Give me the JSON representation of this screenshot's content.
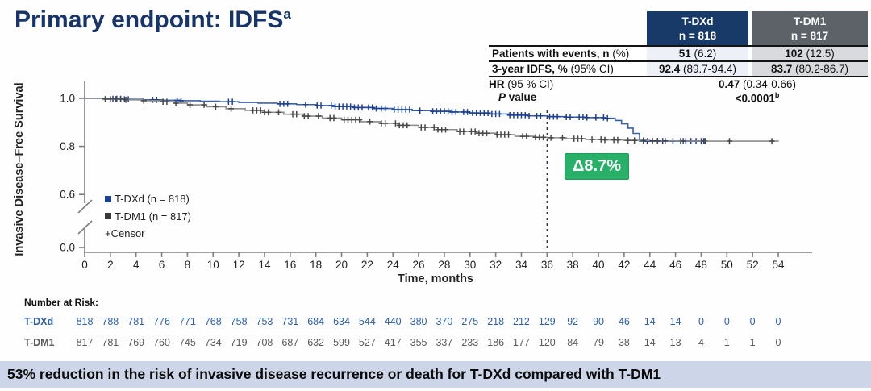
{
  "title": {
    "text": "Primary endpoint: IDFS",
    "sup": "a"
  },
  "stats_table": {
    "col_headers": [
      {
        "line1": "T-DXd",
        "line2": "n = 818"
      },
      {
        "line1": "T-DM1",
        "line2": "n = 817"
      }
    ],
    "rows": [
      {
        "label_bold": "Patients with events, n",
        "label_rest": " (%)",
        "tdxd_bold": "51",
        "tdxd_rest": " (6.2)",
        "tdm1_bold": "102",
        "tdm1_rest": " (12.5)"
      },
      {
        "label_bold": "3-year IDFS, %",
        "label_rest": " (95% CI)",
        "tdxd_bold": "92.4",
        "tdxd_rest": " (89.7-94.4)",
        "tdm1_bold": "83.7",
        "tdm1_rest": " (80.2-86.7)"
      }
    ],
    "hr": {
      "label_bold": "HR",
      "label_rest": " (95 % CI)",
      "value_bold": "0.47",
      "value_rest": " (0.34-0.66)"
    },
    "p": {
      "label_italic": "P",
      "label_rest": " value",
      "value": "<0.0001",
      "sup": "b"
    }
  },
  "chart_data": {
    "type": "line",
    "subtype": "kaplan-meier-step",
    "xlabel": "Time, months",
    "ylabel": "Invasive Disease–Free Survival",
    "xlim": [
      0,
      54
    ],
    "x_ticks": [
      0,
      2,
      4,
      6,
      8,
      10,
      12,
      14,
      16,
      18,
      20,
      22,
      24,
      26,
      28,
      30,
      32,
      34,
      36,
      38,
      40,
      42,
      44,
      46,
      48,
      50,
      52,
      54
    ],
    "y_ticks": [
      1.0,
      0.8,
      0.6,
      0.0
    ],
    "y_axis_break": true,
    "reference_line_x": 36,
    "annotation": {
      "text": "Δ8.7%",
      "color": "#28b068"
    },
    "legend": {
      "censor_label": "+Censor"
    },
    "series": [
      {
        "name": "T-DXd (n = 818)",
        "color": "#3b62a8",
        "censor_color": "#1b3f94",
        "steps": [
          [
            0,
            1.0
          ],
          [
            1.5,
            0.998
          ],
          [
            3,
            0.996
          ],
          [
            4.5,
            0.994
          ],
          [
            6,
            0.992
          ],
          [
            7.5,
            0.99
          ],
          [
            9,
            0.988
          ],
          [
            10.5,
            0.986
          ],
          [
            12,
            0.983
          ],
          [
            13.5,
            0.98
          ],
          [
            15,
            0.977
          ],
          [
            16.5,
            0.974
          ],
          [
            18,
            0.97
          ],
          [
            19.5,
            0.966
          ],
          [
            21,
            0.962
          ],
          [
            22.5,
            0.958
          ],
          [
            24,
            0.953
          ],
          [
            25.5,
            0.949
          ],
          [
            27,
            0.946
          ],
          [
            28.5,
            0.943
          ],
          [
            30,
            0.939
          ],
          [
            31.5,
            0.935
          ],
          [
            33,
            0.93
          ],
          [
            34.5,
            0.927
          ],
          [
            36,
            0.924
          ],
          [
            37.5,
            0.922
          ],
          [
            39,
            0.92
          ],
          [
            40.5,
            0.917
          ],
          [
            41.3,
            0.908
          ],
          [
            41.8,
            0.894
          ],
          [
            42.3,
            0.876
          ],
          [
            42.7,
            0.854
          ],
          [
            43.2,
            0.822
          ],
          [
            48.5,
            0.822
          ]
        ],
        "censors": [
          2.2,
          2.5,
          2.8,
          3.1,
          3.4,
          5.3,
          5.6,
          7.2,
          7.5,
          11.2,
          11.5,
          15.2,
          15.5,
          15.8,
          17.2,
          18.1,
          18.4,
          19.2,
          19.5,
          19.8,
          20.1,
          20.4,
          20.7,
          21.0,
          21.3,
          21.6,
          22.1,
          22.4,
          22.7,
          23.1,
          23.4,
          24.1,
          24.4,
          24.7,
          25.0,
          25.3,
          26.1,
          27.1,
          27.4,
          27.7,
          28.0,
          28.3,
          28.6,
          28.9,
          29.5,
          29.8,
          30.2,
          30.5,
          30.8,
          31.1,
          31.4,
          31.7,
          32.0,
          32.3,
          33.1,
          33.4,
          33.7,
          34.0,
          34.3,
          34.6,
          35.2,
          35.5,
          36.2,
          36.5,
          36.8,
          37.5,
          37.8,
          38.5,
          38.8,
          39.1,
          39.8,
          40.4,
          40.7,
          43.8,
          44.2,
          44.6,
          45.0,
          45.8,
          46.4,
          46.8,
          47.2,
          47.6,
          48.0,
          48.3
        ]
      },
      {
        "name": "T-DM1 (n = 817)",
        "color": "#8c8c8c",
        "censor_color": "#474747",
        "steps": [
          [
            0,
            1.0
          ],
          [
            1.5,
            0.997
          ],
          [
            3,
            0.994
          ],
          [
            4.5,
            0.99
          ],
          [
            6,
            0.986
          ],
          [
            7,
            0.98
          ],
          [
            8,
            0.973
          ],
          [
            9.5,
            0.965
          ],
          [
            11,
            0.957
          ],
          [
            12.5,
            0.95
          ],
          [
            14,
            0.942
          ],
          [
            15.5,
            0.934
          ],
          [
            17,
            0.926
          ],
          [
            18.5,
            0.918
          ],
          [
            20,
            0.911
          ],
          [
            21.5,
            0.903
          ],
          [
            23,
            0.896
          ],
          [
            24.5,
            0.888
          ],
          [
            26,
            0.879
          ],
          [
            27.5,
            0.87
          ],
          [
            29,
            0.862
          ],
          [
            30.5,
            0.855
          ],
          [
            32,
            0.849
          ],
          [
            33.5,
            0.842
          ],
          [
            35,
            0.838
          ],
          [
            36,
            0.836
          ],
          [
            37.5,
            0.832
          ],
          [
            39,
            0.829
          ],
          [
            40.5,
            0.827
          ],
          [
            42,
            0.825
          ],
          [
            44,
            0.823
          ],
          [
            46,
            0.822
          ],
          [
            54,
            0.82
          ]
        ],
        "censors": [
          1.6,
          2.0,
          2.4,
          2.8,
          3.2,
          4.6,
          6.1,
          6.4,
          7.1,
          8.2,
          9.3,
          10.2,
          11.4,
          13.1,
          13.4,
          13.7,
          14.0,
          14.3,
          15.1,
          16.2,
          16.5,
          17.1,
          17.4,
          18.2,
          19.1,
          19.4,
          20.2,
          20.5,
          20.8,
          21.1,
          21.4,
          22.2,
          23.1,
          23.4,
          24.2,
          24.5,
          24.8,
          25.1,
          26.2,
          26.5,
          27.2,
          27.5,
          27.8,
          28.1,
          29.2,
          29.5,
          30.1,
          30.4,
          30.7,
          31.0,
          31.3,
          32.1,
          32.4,
          32.7,
          33.0,
          34.1,
          34.4,
          35.1,
          35.4,
          35.7,
          36.3,
          37.2,
          38.1,
          38.4,
          38.7,
          39.5,
          40.2,
          40.5,
          41.2,
          41.5,
          42.3,
          42.8,
          43.5,
          44.2,
          44.6,
          45.2,
          46.6,
          48.2,
          50.2,
          53.5
        ]
      }
    ]
  },
  "risk_table": {
    "title": "Number at Risk:",
    "months": [
      0,
      2,
      4,
      6,
      8,
      10,
      12,
      14,
      16,
      18,
      20,
      22,
      24,
      26,
      28,
      30,
      32,
      34,
      36,
      38,
      40,
      42,
      44,
      46,
      48,
      50,
      52,
      54
    ],
    "rows": [
      {
        "label": "T-DXd",
        "color": "#2b5fae",
        "values": [
          818,
          788,
          781,
          776,
          771,
          768,
          758,
          753,
          731,
          684,
          634,
          544,
          440,
          380,
          370,
          275,
          218,
          212,
          129,
          92,
          90,
          46,
          14,
          14,
          0,
          0,
          0,
          0
        ]
      },
      {
        "label": "T-DM1",
        "color": "#5a5a5a",
        "values": [
          817,
          781,
          769,
          760,
          745,
          734,
          719,
          708,
          687,
          632,
          599,
          527,
          417,
          355,
          337,
          233,
          186,
          177,
          120,
          84,
          79,
          38,
          14,
          13,
          4,
          1,
          1,
          0
        ]
      }
    ]
  },
  "banner": {
    "text": "53% reduction in the risk of invasive disease recurrence or death for T-DXd compared with T-DM1"
  }
}
